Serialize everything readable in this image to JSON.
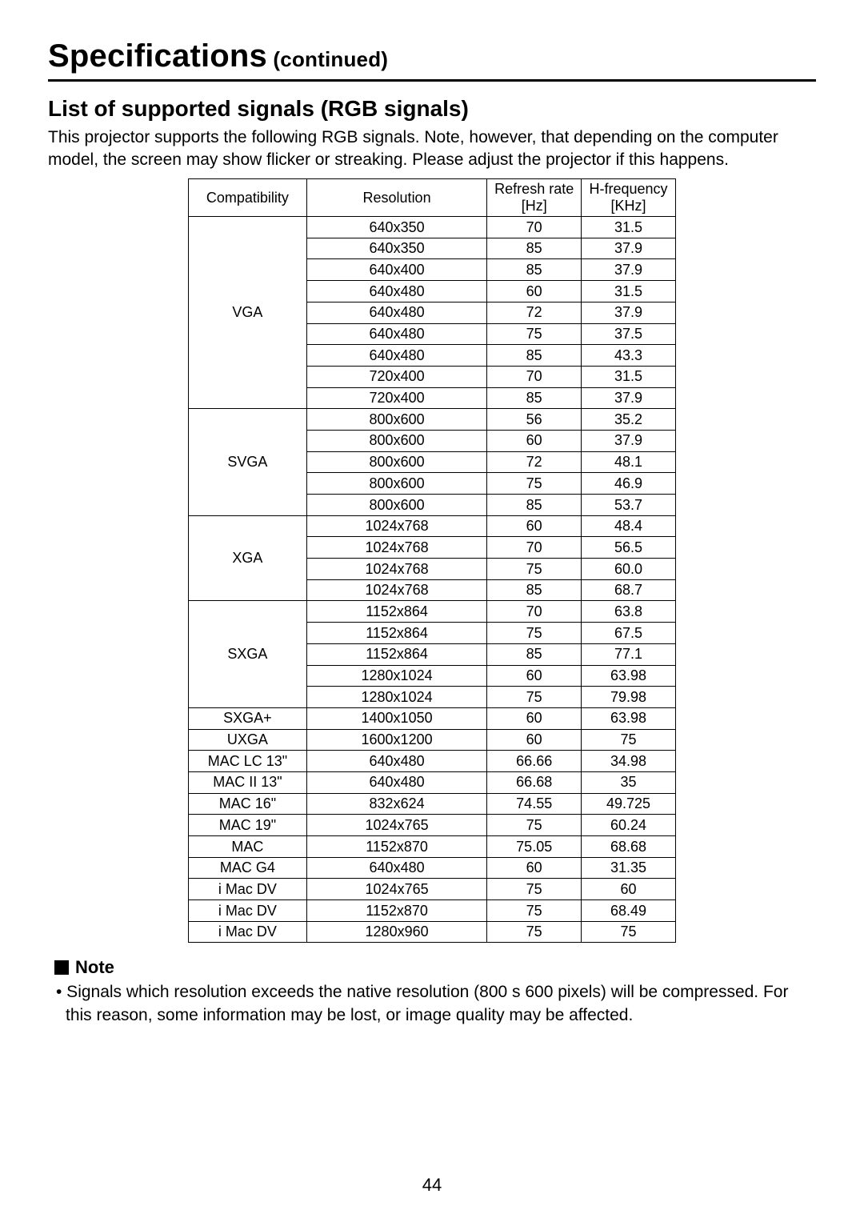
{
  "title_main": "Specifications",
  "title_continued": " (continued)",
  "section_title": "List of supported signals (RGB signals)",
  "section_intro": "This projector supports the following RGB signals. Note, however, that depending on the computer model, the screen may show flicker or streaking. Please adjust the projector if this happens.",
  "table": {
    "headers": {
      "compatibility": "Compatibility",
      "resolution": "Resolution",
      "refresh_line1": "Refresh rate",
      "refresh_line2": "[Hz]",
      "hfreq_line1": "H-frequency",
      "hfreq_line2": "[KHz]"
    },
    "groups": [
      {
        "label": "VGA",
        "rows": [
          {
            "res": "640x350",
            "hz": "70",
            "khz": "31.5"
          },
          {
            "res": "640x350",
            "hz": "85",
            "khz": "37.9"
          },
          {
            "res": "640x400",
            "hz": "85",
            "khz": "37.9"
          },
          {
            "res": "640x480",
            "hz": "60",
            "khz": "31.5"
          },
          {
            "res": "640x480",
            "hz": "72",
            "khz": "37.9"
          },
          {
            "res": "640x480",
            "hz": "75",
            "khz": "37.5"
          },
          {
            "res": "640x480",
            "hz": "85",
            "khz": "43.3"
          },
          {
            "res": "720x400",
            "hz": "70",
            "khz": "31.5"
          },
          {
            "res": "720x400",
            "hz": "85",
            "khz": "37.9"
          }
        ]
      },
      {
        "label": "SVGA",
        "rows": [
          {
            "res": "800x600",
            "hz": "56",
            "khz": "35.2"
          },
          {
            "res": "800x600",
            "hz": "60",
            "khz": "37.9"
          },
          {
            "res": "800x600",
            "hz": "72",
            "khz": "48.1"
          },
          {
            "res": "800x600",
            "hz": "75",
            "khz": "46.9"
          },
          {
            "res": "800x600",
            "hz": "85",
            "khz": "53.7"
          }
        ]
      },
      {
        "label": "XGA",
        "rows": [
          {
            "res": "1024x768",
            "hz": "60",
            "khz": "48.4"
          },
          {
            "res": "1024x768",
            "hz": "70",
            "khz": "56.5"
          },
          {
            "res": "1024x768",
            "hz": "75",
            "khz": "60.0"
          },
          {
            "res": "1024x768",
            "hz": "85",
            "khz": "68.7"
          }
        ]
      },
      {
        "label": "SXGA",
        "rows": [
          {
            "res": "1152x864",
            "hz": "70",
            "khz": "63.8"
          },
          {
            "res": "1152x864",
            "hz": "75",
            "khz": "67.5"
          },
          {
            "res": "1152x864",
            "hz": "85",
            "khz": "77.1"
          },
          {
            "res": "1280x1024",
            "hz": "60",
            "khz": "63.98"
          },
          {
            "res": "1280x1024",
            "hz": "75",
            "khz": "79.98"
          }
        ]
      },
      {
        "label": "SXGA+",
        "rows": [
          {
            "res": "1400x1050",
            "hz": "60",
            "khz": "63.98"
          }
        ]
      },
      {
        "label": "UXGA",
        "rows": [
          {
            "res": "1600x1200",
            "hz": "60",
            "khz": "75"
          }
        ]
      },
      {
        "label": "MAC LC 13\"",
        "rows": [
          {
            "res": "640x480",
            "hz": "66.66",
            "khz": "34.98"
          }
        ]
      },
      {
        "label": "MAC II 13\"",
        "rows": [
          {
            "res": "640x480",
            "hz": "66.68",
            "khz": "35"
          }
        ]
      },
      {
        "label": "MAC 16\"",
        "rows": [
          {
            "res": "832x624",
            "hz": "74.55",
            "khz": "49.725"
          }
        ]
      },
      {
        "label": "MAC 19\"",
        "rows": [
          {
            "res": "1024x765",
            "hz": "75",
            "khz": "60.24"
          }
        ]
      },
      {
        "label": "MAC",
        "rows": [
          {
            "res": "1152x870",
            "hz": "75.05",
            "khz": "68.68"
          }
        ]
      },
      {
        "label": "MAC G4",
        "rows": [
          {
            "res": "640x480",
            "hz": "60",
            "khz": "31.35"
          }
        ]
      },
      {
        "label": "i Mac DV",
        "rows": [
          {
            "res": "1024x765",
            "hz": "75",
            "khz": "60"
          }
        ]
      },
      {
        "label": "i Mac DV",
        "rows": [
          {
            "res": "1152x870",
            "hz": "75",
            "khz": "68.49"
          }
        ]
      },
      {
        "label": "i Mac DV",
        "rows": [
          {
            "res": "1280x960",
            "hz": "75",
            "khz": "75"
          }
        ]
      }
    ]
  },
  "note_label": "Note",
  "note_text": "• Signals which resolution exceeds the native resolution (800 s 600 pixels) will be compressed. For this reason, some information may be lost, or image quality may be affected.",
  "page_number": "44",
  "colors": {
    "text": "#000000",
    "background": "#ffffff",
    "border": "#000000"
  }
}
